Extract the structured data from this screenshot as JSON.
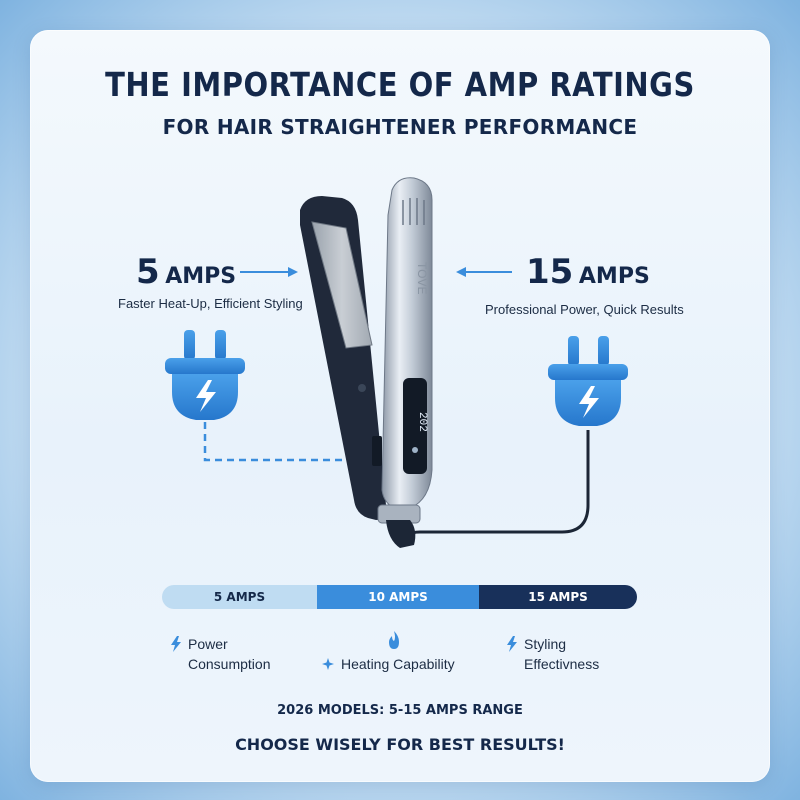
{
  "header": {
    "title": "THE IMPORTANCE OF AMP RATINGS",
    "subtitle": "FOR HAIR STRAIGHTENER PERFORMANCE"
  },
  "left_callout": {
    "amp_number": "5",
    "amp_unit": "AMPS",
    "description": "Faster Heat-Up, Efficient Styling",
    "icon": "plug-icon"
  },
  "right_callout": {
    "amp_number": "15",
    "amp_unit": "AMPS",
    "description": "Professional Power, Quick Results",
    "icon": "plug-icon"
  },
  "device": {
    "display_text": "202",
    "brand_text": "TOVE"
  },
  "scale_bar": {
    "segments": [
      {
        "label": "5 AMPS",
        "color": "#bfdcf2"
      },
      {
        "label": "10 AMPS",
        "color": "#3a8ddc"
      },
      {
        "label": "15 AMPS",
        "color": "#18305a"
      }
    ]
  },
  "features": [
    {
      "line1": "Power",
      "line2": "Consumption",
      "icon": "lightning-icon"
    },
    {
      "line1": "Heating Capability",
      "icon": "flame-icon",
      "secondary_icon": "sparkle-icon"
    },
    {
      "line1": "Styling",
      "line2": "Effectivness",
      "icon": "lightning-icon"
    }
  ],
  "footer": {
    "models": "2026 MODELS: 5-15 AMPS RANGE",
    "cta": "CHOOSE WISELY FOR BEST RESULTS!"
  },
  "colors": {
    "navy": "#14284a",
    "accent_blue": "#3a8ddc",
    "light_blue": "#bfdcf2",
    "dark_blue": "#18305a"
  }
}
